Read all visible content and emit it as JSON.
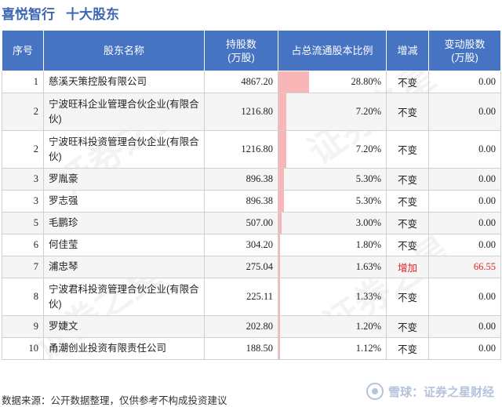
{
  "header": {
    "company": "喜悦智行",
    "section": "十大股东"
  },
  "table": {
    "columns": {
      "rank": "序号",
      "name": "股东名称",
      "shares": "持股数\n(万股)",
      "ratio": "占总流通股本比例",
      "change": "增减",
      "delta": "变动股数\n(万股)"
    },
    "rows": [
      {
        "rank": "1",
        "name": "慈溪天策控股有限公司",
        "shares": "4867.20",
        "ratio": "28.80%",
        "ratio_value": 28.8,
        "change": "不变",
        "delta": "0.00",
        "highlight": false
      },
      {
        "rank": "2",
        "name": "宁波旺科企业管理合伙企业(有限合伙)",
        "shares": "1216.80",
        "ratio": "7.20%",
        "ratio_value": 7.2,
        "change": "不变",
        "delta": "0.00",
        "highlight": false
      },
      {
        "rank": "2",
        "name": "宁波旺科投资管理合伙企业(有限合伙)",
        "shares": "1216.80",
        "ratio": "7.20%",
        "ratio_value": 7.2,
        "change": "不变",
        "delta": "0.00",
        "highlight": false
      },
      {
        "rank": "3",
        "name": "罗胤豪",
        "shares": "896.38",
        "ratio": "5.30%",
        "ratio_value": 5.3,
        "change": "不变",
        "delta": "0.00",
        "highlight": false
      },
      {
        "rank": "3",
        "name": "罗志强",
        "shares": "896.38",
        "ratio": "5.30%",
        "ratio_value": 5.3,
        "change": "不变",
        "delta": "0.00",
        "highlight": false
      },
      {
        "rank": "5",
        "name": "毛鹏珍",
        "shares": "507.00",
        "ratio": "3.00%",
        "ratio_value": 3.0,
        "change": "不变",
        "delta": "0.00",
        "highlight": false
      },
      {
        "rank": "6",
        "name": "何佳莹",
        "shares": "304.20",
        "ratio": "1.80%",
        "ratio_value": 1.8,
        "change": "不变",
        "delta": "0.00",
        "highlight": false
      },
      {
        "rank": "7",
        "name": "浦忠琴",
        "shares": "275.04",
        "ratio": "1.63%",
        "ratio_value": 1.63,
        "change": "增加",
        "delta": "66.55",
        "highlight": true
      },
      {
        "rank": "8",
        "name": "宁波君科投资管理合伙企业(有限合伙)",
        "shares": "225.11",
        "ratio": "1.33%",
        "ratio_value": 1.33,
        "change": "不变",
        "delta": "0.00",
        "highlight": false
      },
      {
        "rank": "9",
        "name": "罗婕文",
        "shares": "202.80",
        "ratio": "1.20%",
        "ratio_value": 1.2,
        "change": "不变",
        "delta": "0.00",
        "highlight": false
      },
      {
        "rank": "10",
        "name": "甬潮创业投资有限责任公司",
        "shares": "188.50",
        "ratio": "1.12%",
        "ratio_value": 1.12,
        "change": "不变",
        "delta": "0.00",
        "highlight": false
      }
    ]
  },
  "footer": {
    "source": "数据来源：公开数据整理，仅供参考不构成投资建议",
    "brand": "雪球：证券之星财经"
  },
  "watermark": "证券之星",
  "colors": {
    "header_bg": "#4673c2",
    "title": "#3e67b3",
    "bar": "#f8b6b6",
    "increase": "#e02020"
  },
  "icons": {
    "brand_logo": "snowball-logo-icon"
  }
}
